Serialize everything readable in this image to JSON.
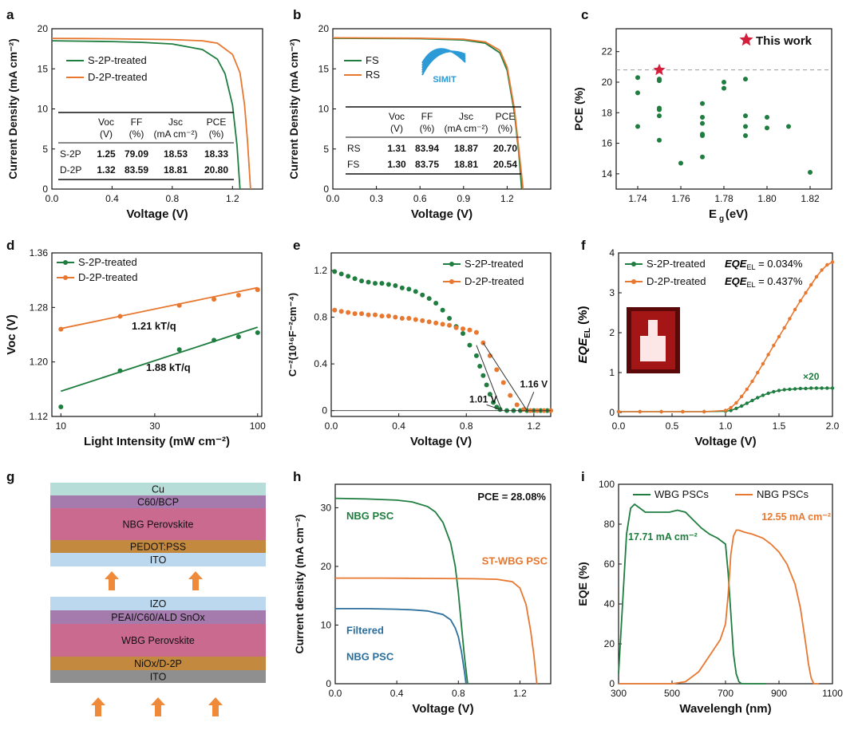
{
  "colors": {
    "green": "#1e7d3f",
    "orange": "#e8772f",
    "blue": "#2b6f9c",
    "star": "#d31f3b",
    "dash": "#999999"
  },
  "chart_data": [
    {
      "id": "a",
      "type": "line",
      "panel_label": "a",
      "xlabel": "Voltage (V)",
      "ylabel": "Current Density (mA cm⁻²)",
      "xlim": [
        0,
        1.4
      ],
      "ylim": [
        0,
        20
      ],
      "xticks": [
        "0.0",
        "0.4",
        "0.8",
        "1.2"
      ],
      "yticks": [
        "0",
        "5",
        "10",
        "15",
        "20"
      ],
      "series": [
        {
          "name": "S-2P-treated",
          "color": "green",
          "x": [
            0,
            0.2,
            0.4,
            0.6,
            0.8,
            1.0,
            1.1,
            1.15,
            1.2,
            1.23,
            1.25
          ],
          "y": [
            18.5,
            18.45,
            18.4,
            18.3,
            18.1,
            17.4,
            16.2,
            14.4,
            10.5,
            5.5,
            0
          ]
        },
        {
          "name": "D-2P-treated",
          "color": "orange",
          "x": [
            0,
            0.2,
            0.4,
            0.6,
            0.8,
            1.0,
            1.1,
            1.2,
            1.25,
            1.28,
            1.3,
            1.32
          ],
          "y": [
            18.8,
            18.78,
            18.75,
            18.7,
            18.65,
            18.5,
            18.2,
            16.8,
            14.5,
            10.5,
            6.0,
            0
          ]
        }
      ],
      "table": {
        "headers": [
          "",
          "Voc (V)",
          "FF (%)",
          "Jsc (mA cm⁻²)",
          "PCE (%)"
        ],
        "rows": [
          [
            "S-2P",
            "1.25",
            "79.09",
            "18.53",
            "18.33"
          ],
          [
            "D-2P",
            "1.32",
            "83.59",
            "18.81",
            "20.80"
          ]
        ]
      }
    },
    {
      "id": "b",
      "type": "line",
      "panel_label": "b",
      "xlabel": "Voltage (V)",
      "ylabel": "Current Density (mA cm⁻²)",
      "xlim": [
        0,
        1.5
      ],
      "ylim": [
        0,
        20
      ],
      "xticks": [
        "0.0",
        "0.3",
        "0.6",
        "0.9",
        "1.2"
      ],
      "yticks": [
        "0",
        "5",
        "10",
        "15",
        "20"
      ],
      "logo_text": "SIMIT",
      "series": [
        {
          "name": "FS",
          "color": "green",
          "x": [
            0,
            0.3,
            0.6,
            0.9,
            1.05,
            1.15,
            1.2,
            1.25,
            1.28,
            1.3
          ],
          "y": [
            18.81,
            18.79,
            18.76,
            18.6,
            18.2,
            17.0,
            14.8,
            9.5,
            4.5,
            0
          ]
        },
        {
          "name": "RS",
          "color": "orange",
          "x": [
            0,
            0.3,
            0.6,
            0.9,
            1.05,
            1.15,
            1.2,
            1.25,
            1.28,
            1.31
          ],
          "y": [
            18.87,
            18.85,
            18.82,
            18.7,
            18.35,
            17.3,
            15.2,
            10.0,
            5.0,
            0
          ]
        }
      ],
      "table": {
        "headers": [
          "",
          "Voc (V)",
          "FF (%)",
          "Jsc (mA cm⁻²)",
          "PCE (%)"
        ],
        "rows": [
          [
            "RS",
            "1.31",
            "83.94",
            "18.87",
            "20.70"
          ],
          [
            "FS",
            "1.30",
            "83.75",
            "18.81",
            "20.54"
          ]
        ]
      }
    },
    {
      "id": "c",
      "type": "scatter",
      "panel_label": "c",
      "xlabel": "Eg (eV)",
      "ylabel": "PCE (%)",
      "xlim": [
        1.73,
        1.83
      ],
      "ylim": [
        13,
        23.5
      ],
      "xticks": [
        "1.74",
        "1.76",
        "1.78",
        "1.80",
        "1.82"
      ],
      "yticks": [
        "14",
        "16",
        "18",
        "20",
        "22"
      ],
      "annotation": "This work",
      "reference_line": 20.8,
      "highlight": {
        "x": 1.75,
        "y": 20.8
      },
      "points": [
        [
          1.74,
          20.3
        ],
        [
          1.74,
          19.3
        ],
        [
          1.74,
          17.1
        ],
        [
          1.75,
          20.2
        ],
        [
          1.75,
          20.1
        ],
        [
          1.75,
          18.3
        ],
        [
          1.75,
          18.2
        ],
        [
          1.75,
          17.8
        ],
        [
          1.75,
          16.2
        ],
        [
          1.76,
          14.7
        ],
        [
          1.77,
          18.6
        ],
        [
          1.77,
          17.7
        ],
        [
          1.77,
          17.3
        ],
        [
          1.77,
          16.6
        ],
        [
          1.77,
          16.5
        ],
        [
          1.77,
          15.1
        ],
        [
          1.78,
          20.0
        ],
        [
          1.78,
          19.6
        ],
        [
          1.79,
          20.2
        ],
        [
          1.79,
          17.8
        ],
        [
          1.79,
          17.1
        ],
        [
          1.79,
          16.5
        ],
        [
          1.8,
          17.7
        ],
        [
          1.8,
          17.0
        ],
        [
          1.81,
          17.1
        ],
        [
          1.82,
          14.1
        ]
      ]
    },
    {
      "id": "d",
      "type": "scatter",
      "panel_label": "d",
      "xlabel": "Light Intensity (mW cm⁻²)",
      "ylabel": "Voc (V)",
      "xscale": "log",
      "xlim": [
        9,
        105
      ],
      "ylim": [
        1.12,
        1.36
      ],
      "xticks": [
        "10",
        "30",
        "100"
      ],
      "xtick_values": [
        10,
        30,
        100
      ],
      "yticks": [
        "1.12",
        "1.20",
        "1.28",
        "1.36"
      ],
      "ytick_values": [
        1.12,
        1.2,
        1.28,
        1.36
      ],
      "series": [
        {
          "name": "S-2P-treated",
          "color": "green",
          "x": [
            10,
            20,
            40,
            60,
            80,
            100
          ],
          "y": [
            1.134,
            1.187,
            1.218,
            1.232,
            1.237,
            1.243
          ],
          "fit": [
            [
              10,
              1.157
            ],
            [
              100,
              1.251
            ]
          ],
          "fit_label": "1.88 kT/q"
        },
        {
          "name": "D-2P-treated",
          "color": "orange",
          "x": [
            10,
            20,
            40,
            60,
            80,
            100
          ],
          "y": [
            1.248,
            1.267,
            1.283,
            1.292,
            1.298,
            1.306
          ],
          "fit": [
            [
              10,
              1.249
            ],
            [
              100,
              1.309
            ]
          ],
          "fit_label": "1.21 kT/q"
        }
      ]
    },
    {
      "id": "e",
      "type": "scatter",
      "panel_label": "e",
      "xlabel": "Voltage (V)",
      "ylabel": "C⁻²(10¹⁶F⁻²cm⁻⁴)",
      "xlim": [
        0,
        1.3
      ],
      "ylim": [
        -0.05,
        1.35
      ],
      "xticks": [
        "0.0",
        "0.4",
        "0.8",
        "1.2"
      ],
      "yticks": [
        "0",
        "0.4",
        "0.8",
        "1.2"
      ],
      "annotations": [
        "1.01 V",
        "1.16 V"
      ],
      "series": [
        {
          "name": "S-2P-treated",
          "color": "green",
          "x": [
            0.02,
            0.06,
            0.1,
            0.14,
            0.18,
            0.22,
            0.26,
            0.3,
            0.34,
            0.38,
            0.42,
            0.46,
            0.5,
            0.54,
            0.58,
            0.62,
            0.66,
            0.7,
            0.74,
            0.78,
            0.82,
            0.86,
            0.88,
            0.9,
            0.92,
            0.94,
            0.96,
            0.98,
            1.0,
            1.04,
            1.08,
            1.12,
            1.16,
            1.2,
            1.24,
            1.28
          ],
          "y": [
            1.19,
            1.17,
            1.15,
            1.13,
            1.11,
            1.1,
            1.09,
            1.09,
            1.08,
            1.07,
            1.05,
            1.04,
            1.02,
            0.99,
            0.96,
            0.92,
            0.86,
            0.79,
            0.72,
            0.66,
            0.56,
            0.47,
            0.38,
            0.3,
            0.22,
            0.14,
            0.07,
            0.03,
            0.01,
            0.0,
            0.0,
            0.0,
            0.0,
            0.0,
            0.0,
            0.0
          ]
        },
        {
          "name": "D-2P-treated",
          "color": "orange",
          "x": [
            0.02,
            0.06,
            0.1,
            0.14,
            0.18,
            0.22,
            0.26,
            0.3,
            0.34,
            0.38,
            0.42,
            0.46,
            0.5,
            0.54,
            0.58,
            0.62,
            0.66,
            0.7,
            0.74,
            0.78,
            0.82,
            0.86,
            0.9,
            0.94,
            0.98,
            1.02,
            1.06,
            1.1,
            1.14,
            1.18,
            1.22,
            1.26,
            1.3
          ],
          "y": [
            0.86,
            0.85,
            0.84,
            0.83,
            0.83,
            0.82,
            0.82,
            0.81,
            0.81,
            0.8,
            0.79,
            0.79,
            0.78,
            0.77,
            0.76,
            0.75,
            0.74,
            0.73,
            0.71,
            0.7,
            0.69,
            0.67,
            0.58,
            0.47,
            0.35,
            0.24,
            0.13,
            0.05,
            0.01,
            0.0,
            0.0,
            0.0,
            0.0
          ]
        }
      ]
    },
    {
      "id": "f",
      "type": "line",
      "panel_label": "f",
      "xlabel": "Voltage (V)",
      "ylabel": "EQE_EL (%)",
      "xlim": [
        0,
        2.0
      ],
      "ylim": [
        -0.1,
        4
      ],
      "xticks": [
        "0.0",
        "0.5",
        "1.0",
        "1.5",
        "2.0"
      ],
      "yticks": [
        "0",
        "1",
        "2",
        "3",
        "4"
      ],
      "multiplier_label": "×20",
      "series": [
        {
          "name": "S-2P-treated",
          "eqe_label": "EQE",
          "eqe_sub": "EL",
          "eqe_value": " = 0.034%",
          "color": "green",
          "x": [
            0,
            0.2,
            0.4,
            0.6,
            0.8,
            1.0,
            1.05,
            1.1,
            1.15,
            1.2,
            1.25,
            1.3,
            1.35,
            1.4,
            1.45,
            1.5,
            1.55,
            1.6,
            1.65,
            1.7,
            1.75,
            1.8,
            1.85,
            1.9,
            1.95,
            2.0
          ],
          "y": [
            0.02,
            0.02,
            0.02,
            0.02,
            0.02,
            0.03,
            0.05,
            0.1,
            0.16,
            0.23,
            0.3,
            0.37,
            0.43,
            0.48,
            0.52,
            0.55,
            0.57,
            0.58,
            0.59,
            0.6,
            0.6,
            0.61,
            0.61,
            0.61,
            0.61,
            0.61
          ]
        },
        {
          "name": "D-2P-treated",
          "eqe_label": "EQE",
          "eqe_sub": "EL",
          "eqe_value": " = 0.437%",
          "color": "orange",
          "x": [
            0,
            0.2,
            0.4,
            0.6,
            0.8,
            1.0,
            1.05,
            1.1,
            1.15,
            1.2,
            1.25,
            1.3,
            1.35,
            1.4,
            1.45,
            1.5,
            1.55,
            1.6,
            1.65,
            1.7,
            1.75,
            1.8,
            1.85,
            1.9,
            1.95,
            2.0
          ],
          "y": [
            0.02,
            0.02,
            0.02,
            0.02,
            0.02,
            0.05,
            0.12,
            0.24,
            0.4,
            0.58,
            0.78,
            1.0,
            1.22,
            1.45,
            1.68,
            1.9,
            2.12,
            2.35,
            2.58,
            2.8,
            3.0,
            3.2,
            3.4,
            3.57,
            3.7,
            3.77
          ]
        }
      ]
    },
    {
      "id": "g",
      "type": "diagram",
      "panel_label": "g",
      "top_stack": [
        {
          "label": "Cu",
          "color": "#b7ddd9"
        },
        {
          "label": "C60/BCP",
          "color": "#a57aad"
        },
        {
          "label": "NBG Perovskite",
          "color": "#c96a8e"
        },
        {
          "label": "PEDOT:PSS",
          "color": "#c3893f"
        },
        {
          "label": "ITO",
          "color": "#bcd8ee"
        }
      ],
      "bottom_stack": [
        {
          "label": "IZO",
          "color": "#bcd8ee"
        },
        {
          "label": "PEAI/C60/ALD SnOx",
          "color": "#a57aad"
        },
        {
          "label": "WBG Perovskite",
          "color": "#c96a8e"
        },
        {
          "label": "NiOx/D-2P",
          "color": "#c3893f"
        },
        {
          "label": "ITO",
          "color": "#8f8f8f"
        }
      ],
      "arrow_color": "#ef8a3a"
    },
    {
      "id": "h",
      "type": "line",
      "panel_label": "h",
      "xlabel": "Voltage (V)",
      "ylabel": "Current density (mA cm⁻²)",
      "xlim": [
        0,
        1.4
      ],
      "ylim": [
        0,
        34
      ],
      "xticks": [
        "0.0",
        "0.4",
        "0.8",
        "1.2"
      ],
      "yticks": [
        "0",
        "10",
        "20",
        "30"
      ],
      "annotation": "PCE = 28.08%",
      "series": [
        {
          "name": "NBG PSC",
          "color": "green",
          "x": [
            0,
            0.2,
            0.4,
            0.5,
            0.6,
            0.65,
            0.7,
            0.75,
            0.78,
            0.8,
            0.82,
            0.84,
            0.86
          ],
          "y": [
            31.6,
            31.5,
            31.3,
            31.0,
            30.2,
            29.3,
            27.5,
            24.0,
            20.0,
            15.5,
            10.0,
            4.5,
            0
          ]
        },
        {
          "name": "ST-WBG PSC",
          "color": "orange",
          "x": [
            0,
            0.3,
            0.6,
            0.9,
            1.05,
            1.15,
            1.2,
            1.24,
            1.27,
            1.29,
            1.31
          ],
          "y": [
            18.0,
            18.0,
            17.95,
            17.9,
            17.8,
            17.4,
            16.3,
            13.5,
            9.0,
            5.0,
            0
          ]
        },
        {
          "name": "Filtered NBG PSC",
          "label_lines": [
            "Filtered",
            "NBG PSC"
          ],
          "color": "blue",
          "x": [
            0,
            0.2,
            0.4,
            0.5,
            0.6,
            0.7,
            0.75,
            0.78,
            0.8,
            0.82,
            0.84,
            0.85
          ],
          "y": [
            12.8,
            12.8,
            12.7,
            12.6,
            12.4,
            11.8,
            10.9,
            9.5,
            8.0,
            5.5,
            2.0,
            0
          ]
        }
      ]
    },
    {
      "id": "i",
      "type": "line",
      "panel_label": "i",
      "xlabel": "Wavelengh (nm)",
      "ylabel": "EQE (%)",
      "xlim": [
        300,
        1100
      ],
      "ylim": [
        0,
        100
      ],
      "xticks": [
        "300",
        "500",
        "700",
        "900",
        "1100"
      ],
      "yticks": [
        "0",
        "20",
        "40",
        "60",
        "80",
        "100"
      ],
      "series": [
        {
          "name": "WBG PSCs",
          "color": "green",
          "annotation": "17.71 mA cm⁻²",
          "x": [
            300,
            315,
            330,
            345,
            360,
            380,
            400,
            430,
            460,
            490,
            520,
            550,
            580,
            610,
            640,
            670,
            700,
            710,
            720,
            730,
            740,
            750,
            760,
            780,
            800,
            850
          ],
          "y": [
            5,
            40,
            75,
            88,
            90,
            88,
            86,
            86,
            86,
            86,
            87,
            86,
            82,
            78,
            75,
            73,
            70,
            55,
            35,
            15,
            5,
            1,
            0,
            0,
            0,
            0
          ]
        },
        {
          "name": "NBG PSCs",
          "color": "orange",
          "annotation": "12.55 mA cm⁻²",
          "x": [
            300,
            400,
            500,
            550,
            600,
            640,
            680,
            700,
            710,
            720,
            730,
            740,
            750,
            770,
            800,
            840,
            870,
            900,
            930,
            960,
            980,
            1000,
            1010,
            1020,
            1030,
            1050
          ],
          "y": [
            0,
            0,
            0,
            1,
            6,
            14,
            22,
            30,
            45,
            65,
            74,
            77,
            77,
            76,
            75,
            73,
            70,
            66,
            60,
            50,
            38,
            20,
            10,
            3,
            0,
            0
          ]
        }
      ]
    }
  ]
}
